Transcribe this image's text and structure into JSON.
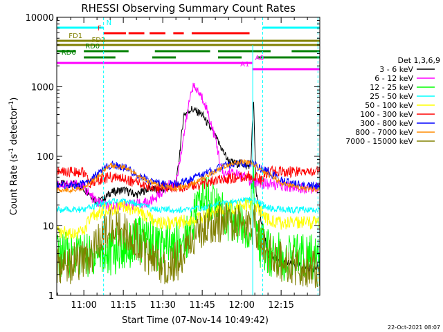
{
  "chart_data": {
    "type": "line",
    "title": "RHESSI Observing Summary Count Rates",
    "xlabel": "Start Time (07-Nov-14 10:49:42)",
    "ylabel_main": "Count Rate (s",
    "ylabel_sup": "-1",
    "ylabel_mid": " detector",
    "ylabel_end": ")",
    "x_tick_labels": [
      "11:00",
      "11:15",
      "11:30",
      "11:45",
      "12:00",
      "12:15"
    ],
    "x_ticks_min": [
      60,
      75,
      90,
      105,
      120,
      135
    ],
    "xlim_min": [
      49.7,
      149.7
    ],
    "y_scale": "log",
    "ylim": [
      1,
      10000
    ],
    "y_tick_labels": [
      "1",
      "10",
      "100",
      "1000",
      "10000"
    ],
    "y_tick_values": [
      1,
      10,
      100,
      1000,
      10000
    ],
    "legend_title": "Det 1,3,6,9",
    "legend_position": "right",
    "footer": "22-Oct-2021 08:07",
    "series": [
      {
        "name": "3 - 6 keV",
        "color": "#000000",
        "x": [
          50,
          55,
          58,
          62,
          65,
          68,
          70,
          75,
          80,
          85,
          88,
          92,
          95,
          98,
          101,
          105,
          110,
          115,
          118,
          120,
          122,
          123.5,
          124.5,
          125.5,
          127,
          130,
          135,
          145,
          150
        ],
        "y": [
          40,
          40,
          38,
          30,
          22,
          25,
          30,
          33,
          28,
          35,
          32,
          35,
          35,
          400,
          480,
          400,
          190,
          85,
          78,
          80,
          70,
          80,
          700,
          30,
          15,
          4,
          3,
          2.5,
          2.5
        ]
      },
      {
        "name": "6 - 12 keV",
        "color": "#ff00ff",
        "x": [
          50,
          55,
          60,
          62,
          65,
          68,
          70,
          75,
          80,
          85,
          88,
          92,
          95,
          98,
          101,
          103,
          106,
          110,
          113,
          115,
          118,
          120,
          122,
          124,
          126,
          128,
          130,
          135,
          145,
          150
        ],
        "y": [
          40,
          40,
          38,
          28,
          22,
          20,
          18,
          20,
          20,
          22,
          27,
          38,
          40,
          200,
          1000,
          900,
          600,
          180,
          50,
          60,
          55,
          50,
          50,
          40,
          45,
          40,
          40,
          38,
          35,
          35
        ]
      },
      {
        "name": "12 - 25 keV",
        "color": "#00ff00",
        "x": [
          50,
          55,
          60,
          62,
          65,
          68,
          70,
          75,
          80,
          85,
          88,
          90,
          95,
          100,
          103,
          106,
          110,
          115,
          120,
          123,
          124.5,
          126,
          130,
          135,
          145,
          150
        ],
        "y": [
          4,
          4,
          4,
          3.5,
          4,
          4,
          4,
          5,
          6,
          7,
          5,
          5,
          5,
          8,
          20,
          30,
          20,
          12,
          10,
          10,
          40,
          6,
          4,
          3.5,
          3.5,
          3.5
        ]
      },
      {
        "name": "25 - 50 keV",
        "color": "#00ffff",
        "x": [
          50,
          55,
          60,
          62,
          65,
          70,
          75,
          80,
          85,
          90,
          95,
          100,
          105,
          110,
          115,
          120,
          123,
          126,
          128,
          130,
          135,
          140,
          145,
          150
        ],
        "y": [
          17,
          17,
          17,
          18,
          20,
          22,
          23,
          21,
          18,
          17,
          17,
          17,
          18,
          20,
          22,
          23,
          24,
          22,
          20,
          18,
          17,
          17,
          17,
          17
        ]
      },
      {
        "name": "50 - 100 keV",
        "color": "#ffff00",
        "x": [
          50,
          55,
          60,
          62,
          65,
          70,
          75,
          80,
          85,
          90,
          95,
          100,
          105,
          110,
          115,
          120,
          123,
          126,
          128,
          130,
          135,
          140,
          145,
          150
        ],
        "y": [
          8,
          8,
          8,
          12,
          15,
          18,
          18,
          16,
          13,
          11,
          11,
          12,
          13,
          16,
          18,
          19,
          20,
          18,
          15,
          12,
          11,
          11,
          11,
          11
        ]
      },
      {
        "name": "100 - 300 keV",
        "color": "#ff0000",
        "x": [
          50,
          55,
          60,
          62,
          65,
          70,
          75,
          80,
          85,
          90,
          95,
          100,
          105,
          110,
          115,
          120,
          123,
          126,
          128,
          130,
          135,
          140,
          145,
          150
        ],
        "y": [
          60,
          60,
          60,
          40,
          45,
          50,
          48,
          42,
          36,
          35,
          35,
          37,
          40,
          44,
          48,
          50,
          52,
          50,
          45,
          60,
          60,
          60,
          60,
          60
        ]
      },
      {
        "name": "300 - 800 keV",
        "color": "#0000ff",
        "x": [
          50,
          55,
          60,
          65,
          70,
          75,
          80,
          85,
          90,
          95,
          100,
          105,
          110,
          115,
          120,
          125,
          130,
          135,
          140,
          145,
          150
        ],
        "y": [
          38,
          38,
          40,
          55,
          75,
          70,
          55,
          45,
          40,
          40,
          45,
          55,
          65,
          75,
          80,
          75,
          60,
          45,
          40,
          38,
          37
        ]
      },
      {
        "name": "800 - 7000 keV",
        "color": "#ff8c00",
        "x": [
          50,
          55,
          60,
          65,
          70,
          75,
          80,
          85,
          90,
          95,
          100,
          105,
          110,
          115,
          120,
          125,
          130,
          135,
          140,
          145,
          150
        ],
        "y": [
          33,
          33,
          35,
          50,
          75,
          70,
          55,
          43,
          37,
          35,
          38,
          48,
          62,
          75,
          85,
          75,
          55,
          42,
          36,
          34,
          33
        ]
      },
      {
        "name": "7000 - 15000 keV",
        "color": "#808000",
        "x": [
          50,
          55,
          60,
          65,
          68,
          70,
          72,
          75,
          80,
          85,
          88,
          90,
          95,
          100,
          103,
          106,
          110,
          115,
          120,
          125,
          128,
          130,
          135,
          140,
          145,
          150
        ],
        "y": [
          2.5,
          2.8,
          3.2,
          5,
          8,
          10,
          10,
          9,
          6,
          3.5,
          3,
          2.8,
          3,
          5,
          8,
          10,
          11,
          12,
          12,
          10,
          6,
          4,
          3,
          2.8,
          2.6,
          2.5
        ]
      }
    ],
    "state_bars": [
      {
        "label": "N",
        "color": "#00ffff",
        "segments": [
          [
            49.7,
            67.5
          ],
          [
            128,
            149.7
          ]
        ]
      },
      {
        "label": "F",
        "color": "#ff0000",
        "segments": [
          [
            67.5,
            76
          ],
          [
            77,
            83
          ],
          [
            85,
            91
          ],
          [
            94,
            98
          ],
          [
            101,
            123
          ]
        ]
      },
      {
        "label": "FD1",
        "color": "#808000",
        "segments": [
          [
            49.7,
            149.7
          ]
        ]
      },
      {
        "label": "FD2",
        "color": "#808000",
        "segments": [
          [
            49.7,
            149.7
          ]
        ]
      },
      {
        "label": "RD0",
        "color": "#008000",
        "segments": [
          [
            49.7,
            57
          ],
          [
            60,
            77
          ],
          [
            87,
            108
          ],
          [
            111,
            131
          ],
          [
            139,
            149.7
          ]
        ]
      },
      {
        "label": "RD6",
        "color": "#008000",
        "segments": [
          [
            60,
            72
          ],
          [
            86,
            95
          ],
          [
            111,
            120
          ],
          [
            126,
            149.7
          ]
        ]
      },
      {
        "label": "A0",
        "color": "#ff00ff",
        "segments": [
          [
            49.7,
            124
          ]
        ]
      },
      {
        "label": "A1",
        "color": "#ff00ff",
        "segments": [
          [
            124,
            149.7
          ]
        ]
      }
    ],
    "vertical_markers_min": [
      67.5,
      128,
      149
    ],
    "spike_minute": 124.2
  }
}
